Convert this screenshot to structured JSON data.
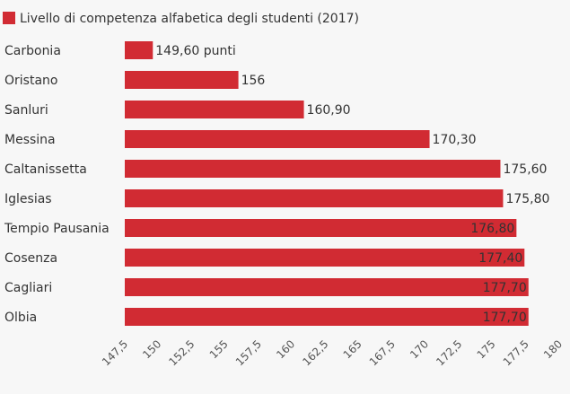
{
  "chart_data": {
    "type": "bar",
    "orientation": "horizontal",
    "legend": "top-left",
    "grid": false,
    "series": [
      {
        "name": "Livello di competenza alfabetica degli studenti (2017)",
        "color": "#d12b33",
        "values": [
          149.6,
          156,
          160.9,
          170.3,
          175.6,
          175.8,
          176.8,
          177.4,
          177.7,
          177.7
        ],
        "value_labels": [
          "149,60 punti",
          "156",
          "160,90",
          "170,30",
          "175,60",
          "175,80",
          "176,80",
          "177,40",
          "177,70",
          "177,70"
        ]
      }
    ],
    "categories": [
      "Carbonia",
      "Oristano",
      "Sanluri",
      "Messina",
      "Caltanissetta",
      "Iglesias",
      "Tempio Pausania",
      "Cosenza",
      "Cagliari",
      "Olbia"
    ],
    "xlim": [
      147.5,
      180
    ],
    "x_ticks": [
      147.5,
      150,
      152.5,
      155,
      157.5,
      160,
      162.5,
      165,
      167.5,
      170,
      172.5,
      175,
      177.5,
      180
    ],
    "x_tick_labels": [
      "147,5",
      "150",
      "152,5",
      "155",
      "157,5",
      "160",
      "162,5",
      "165",
      "167,5",
      "170",
      "172,5",
      "175",
      "177,5",
      "180"
    ]
  }
}
